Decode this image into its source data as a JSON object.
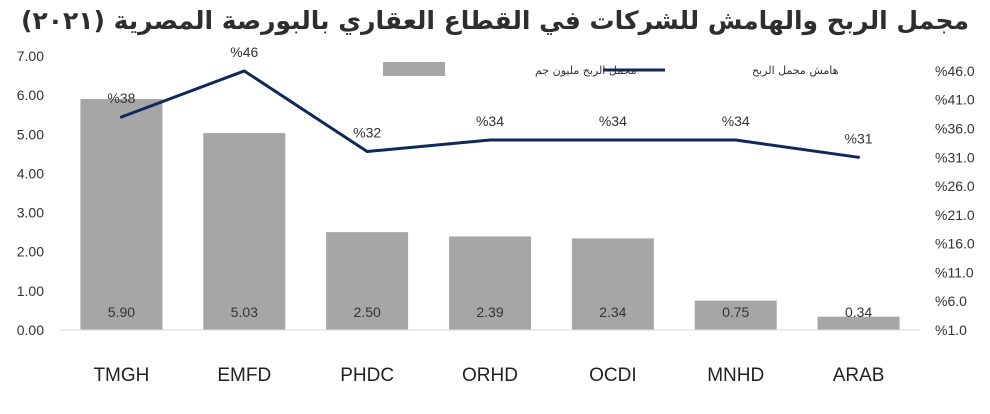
{
  "chart_data": {
    "type": "bar",
    "title": "مجمل الربح والهامش للشركات في القطاع العقاري بالبورصة المصرية (٢٠٢١)",
    "categories": [
      "TMGH",
      "EMFD",
      "PHDC",
      "ORHD",
      "OCDI",
      "MNHD",
      "ARAB"
    ],
    "series": [
      {
        "name": "مجمل الربح مليون جم",
        "type": "bar",
        "axis": "left",
        "values": [
          5.9,
          5.03,
          2.5,
          2.39,
          2.34,
          0.75,
          0.34
        ],
        "labels": [
          "5.90",
          "5.03",
          "2.50",
          "2.39",
          "2.34",
          "0.75",
          "0.34"
        ],
        "color": "#a6a6a6"
      },
      {
        "name": "هامش مجمل الربح",
        "type": "line",
        "axis": "right",
        "values": [
          38,
          46,
          32,
          34,
          34,
          34,
          31
        ],
        "labels": [
          "%38",
          "%46",
          "%32",
          "%34",
          "%34",
          "%34",
          "%31"
        ],
        "color": "#0f2a5a"
      }
    ],
    "y_left": {
      "range": [
        0,
        7
      ],
      "ticks": [
        0,
        1,
        2,
        3,
        4,
        5,
        6,
        7
      ],
      "tick_labels": [
        "0.00",
        "1.00",
        "2.00",
        "3.00",
        "4.00",
        "5.00",
        "6.00",
        "7.00"
      ]
    },
    "y_right": {
      "range": [
        1,
        48.6
      ],
      "ticks": [
        1,
        6,
        11,
        16,
        21,
        26,
        31,
        36,
        41,
        46
      ],
      "tick_labels": [
        "%1.0",
        "%6.0",
        "%11.0",
        "%16.0",
        "%21.0",
        "%26.0",
        "%31.0",
        "%36.0",
        "%41.0",
        "%46.0"
      ]
    },
    "grid": false,
    "legend_position": "top"
  }
}
